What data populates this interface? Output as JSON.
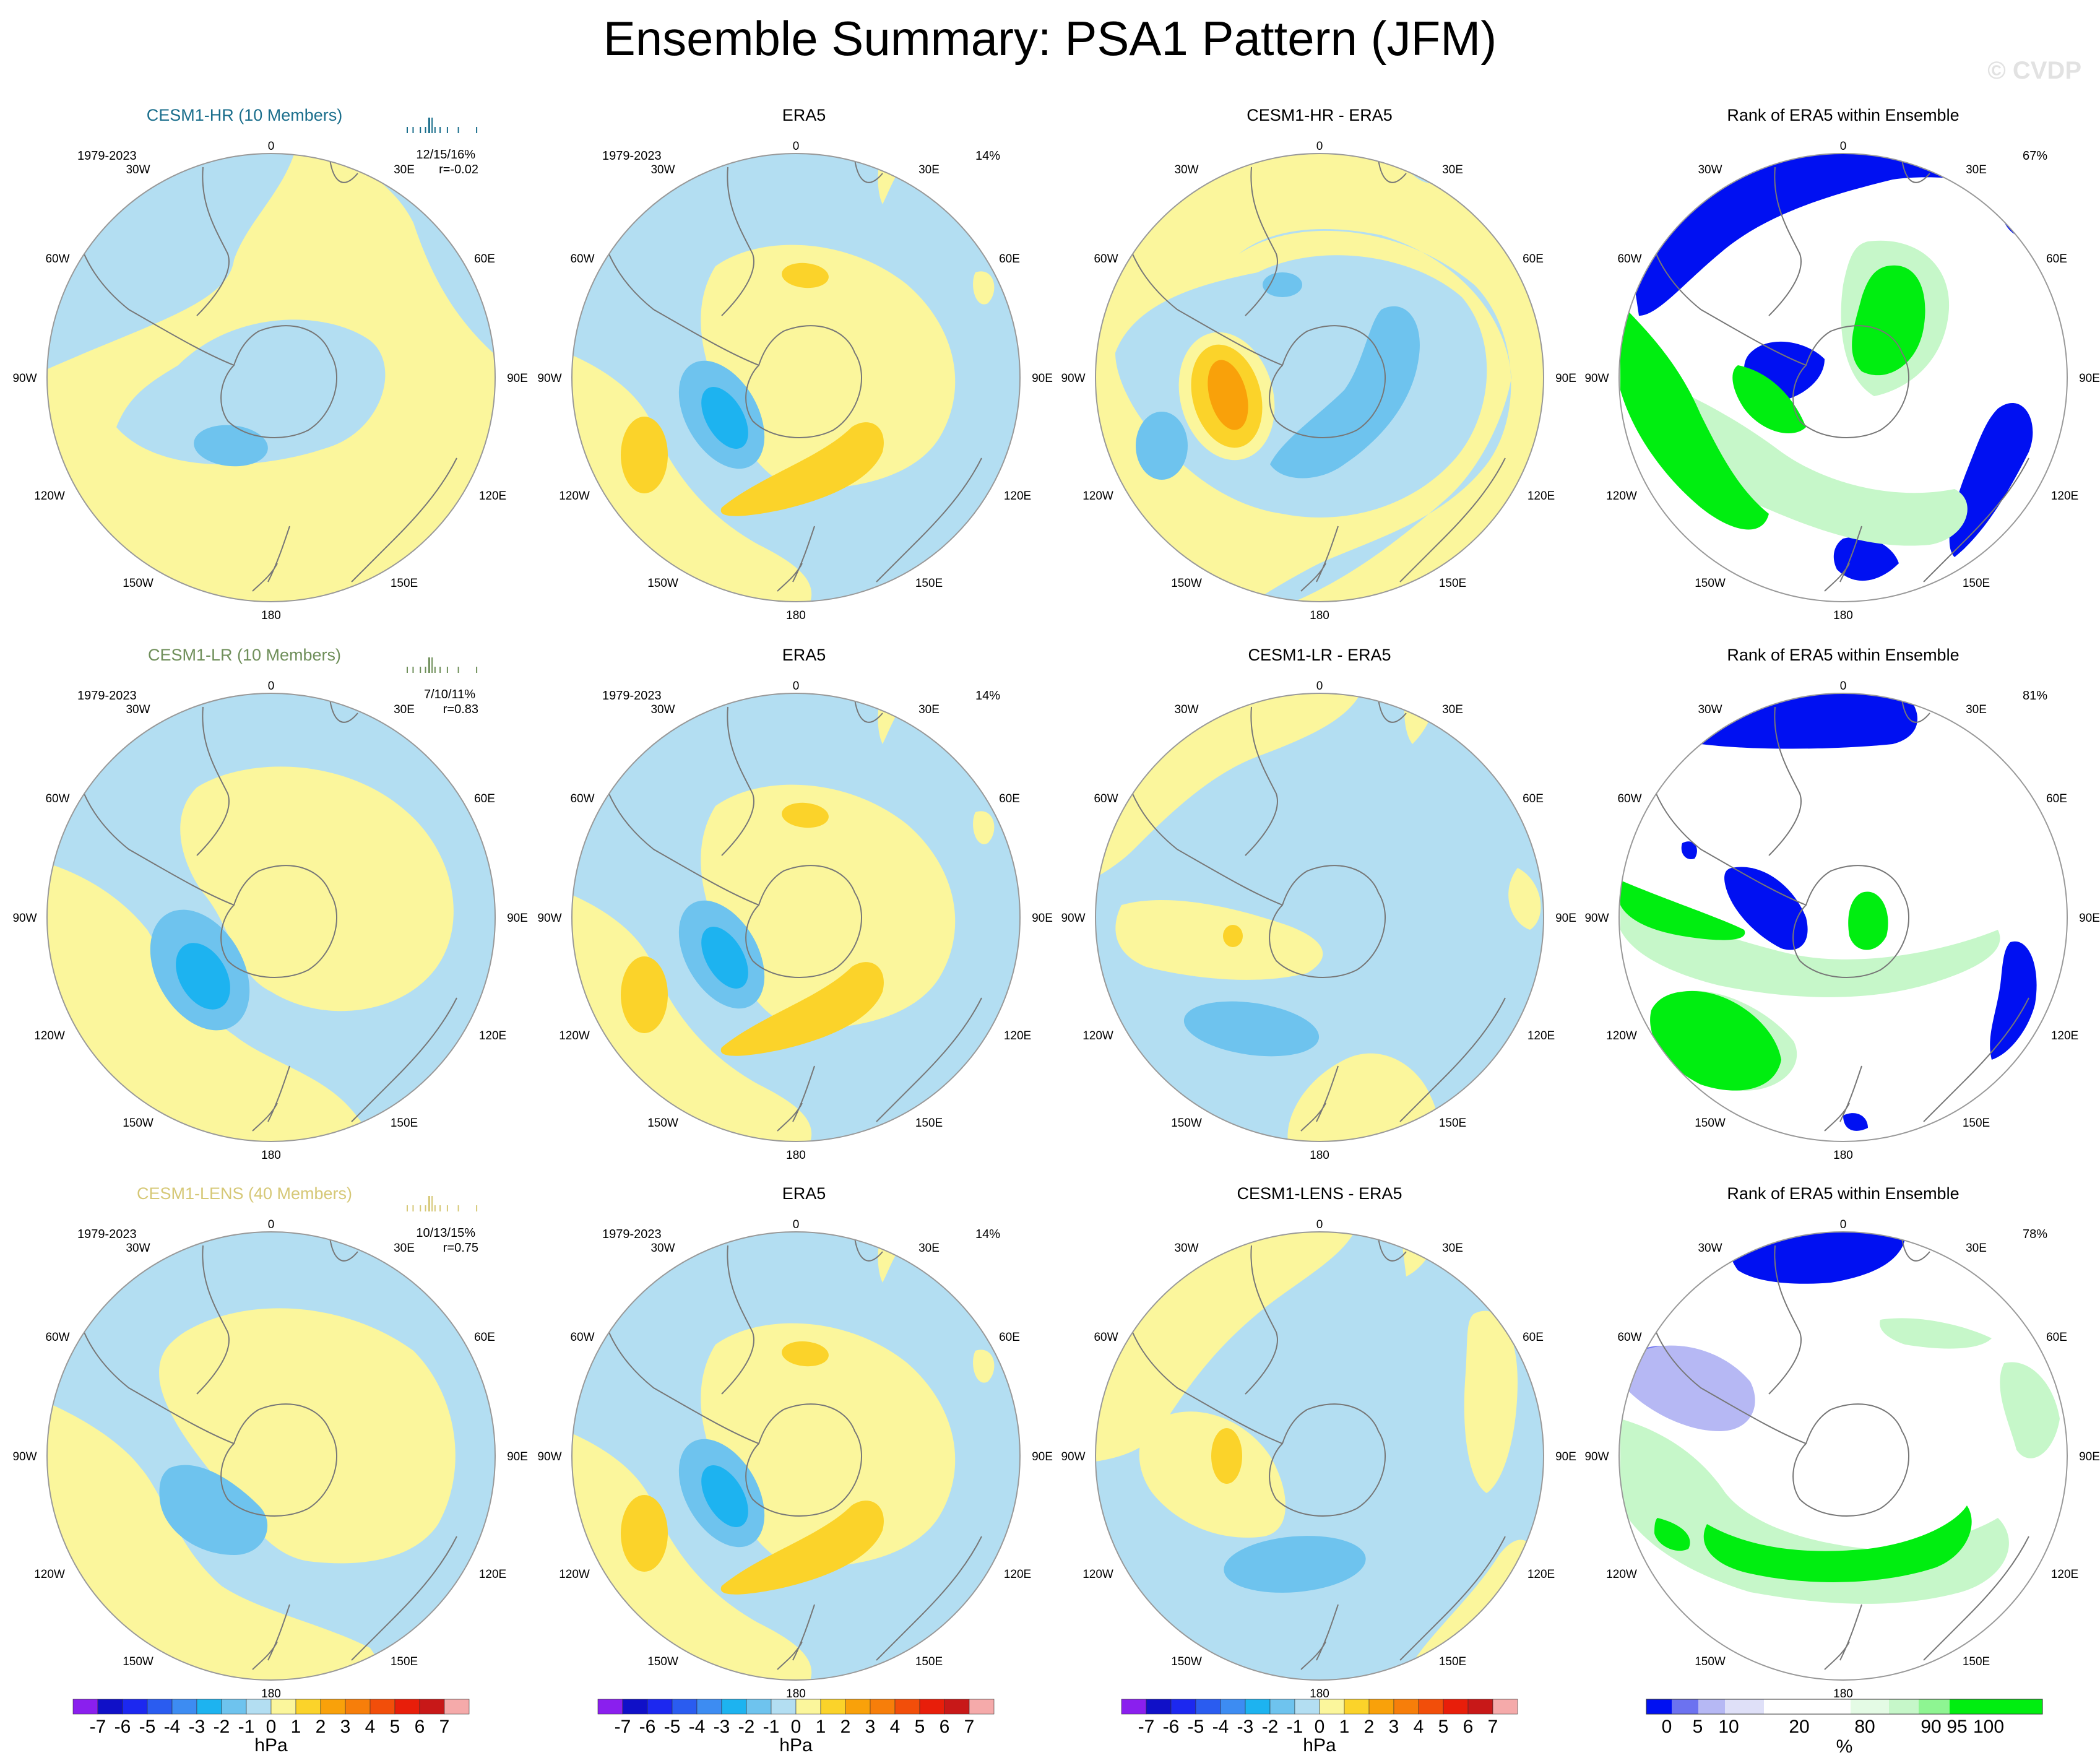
{
  "figure": {
    "title": "Ensemble Summary: PSA1 Pattern (JFM)",
    "copyright": "© CVDP",
    "colors": {
      "blue_light": "#b3def2",
      "blue_mid": "#6ec3ee",
      "blue_strong": "#1db3f0",
      "yellow_light": "#fbf69c",
      "yellow_mid": "#fbd32a",
      "orange": "#f9a10a",
      "rank_blue": "#0010f2",
      "rank_green": "#00ee10",
      "rank_lightgreen": "#c6f7c9"
    }
  },
  "longitude_labels": {
    "top": "0",
    "bottom": "180",
    "upper_left": "30W",
    "upper_right": "30E",
    "left_upper": "60W",
    "right_upper": "60E",
    "left": "90W",
    "right": "90E",
    "left_lower": "120W",
    "right_lower": "120E",
    "lower_left": "150W",
    "lower_right": "150E"
  },
  "rows": [
    {
      "model_title": "CESM1-HR (10 Members)",
      "model_color": "#1a6e8c",
      "period": "1979-2023",
      "stats_pct": "12/15/16%",
      "stats_r": "r=-0.02",
      "era5_title": "ERA5",
      "era5_period": "1979-2023",
      "era5_pct": "14%",
      "diff_title": "CESM1-HR - ERA5",
      "rank_title": "Rank of ERA5 within Ensemble",
      "rank_pct": "67%"
    },
    {
      "model_title": "CESM1-LR (10 Members)",
      "model_color": "#6f8f5a",
      "period": "1979-2023",
      "stats_pct": "7/10/11%",
      "stats_r": "r=0.83",
      "era5_title": "ERA5",
      "era5_period": "1979-2023",
      "era5_pct": "14%",
      "diff_title": "CESM1-LR - ERA5",
      "rank_title": "Rank of ERA5 within Ensemble",
      "rank_pct": "81%"
    },
    {
      "model_title": "CESM1-LENS (40 Members)",
      "model_color": "#d6c877",
      "period": "1979-2023",
      "stats_pct": "10/13/15%",
      "stats_r": "r=0.75",
      "era5_title": "ERA5",
      "era5_period": "1979-2023",
      "era5_pct": "14%",
      "diff_title": "CESM1-LENS - ERA5",
      "rank_title": "Rank of ERA5 within Ensemble",
      "rank_pct": "78%"
    }
  ],
  "colorbar_hpa": {
    "unit": "hPa",
    "labels": [
      "-7",
      "-6",
      "-5",
      "-4",
      "-3",
      "-2",
      "-1",
      "0",
      "1",
      "2",
      "3",
      "4",
      "5",
      "6",
      "7"
    ],
    "colors": [
      "#8a1fee",
      "#1010c8",
      "#1c28f0",
      "#2a5cf0",
      "#3d8cf2",
      "#1db3f0",
      "#6ec3ee",
      "#b3def2",
      "#fbf69c",
      "#fbd32a",
      "#f9a10a",
      "#f77e0a",
      "#f24e0a",
      "#e81e0a",
      "#c81818",
      "#f5aaaa"
    ]
  },
  "colorbar_rank": {
    "unit": "%",
    "labels": [
      "0",
      "5",
      "10",
      "20",
      "80",
      "90",
      "95",
      "100"
    ],
    "colors": [
      "#0010f2",
      "#6c72f0",
      "#b6b8f4",
      "#dfe0f8",
      "#ffffff",
      "#e4fbe5",
      "#c6f7c9",
      "#8ef592",
      "#00ee10"
    ]
  }
}
